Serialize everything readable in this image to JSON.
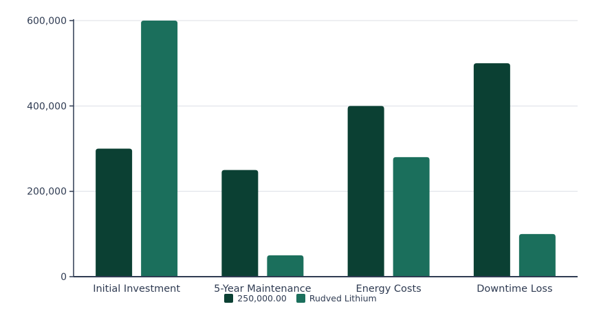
{
  "chart_data": {
    "type": "bar",
    "categories": [
      "Initial Investment",
      "5-Year Maintenance",
      "Energy Costs",
      "Downtime Loss"
    ],
    "series": [
      {
        "name": "250,000.00",
        "color": "#0b4033",
        "values": [
          300000,
          250000,
          400000,
          500000
        ]
      },
      {
        "name": "Rudved Lithium",
        "color": "#1b6f5c",
        "values": [
          600000,
          50000,
          280000,
          100000
        ]
      }
    ],
    "yticks": [
      0,
      200000,
      400000,
      600000
    ],
    "ytick_labels": [
      "0",
      "200,000",
      "400,000",
      "600,000"
    ],
    "ylim": [
      0,
      600000
    ],
    "grid": true,
    "legend_position": "bottom"
  }
}
